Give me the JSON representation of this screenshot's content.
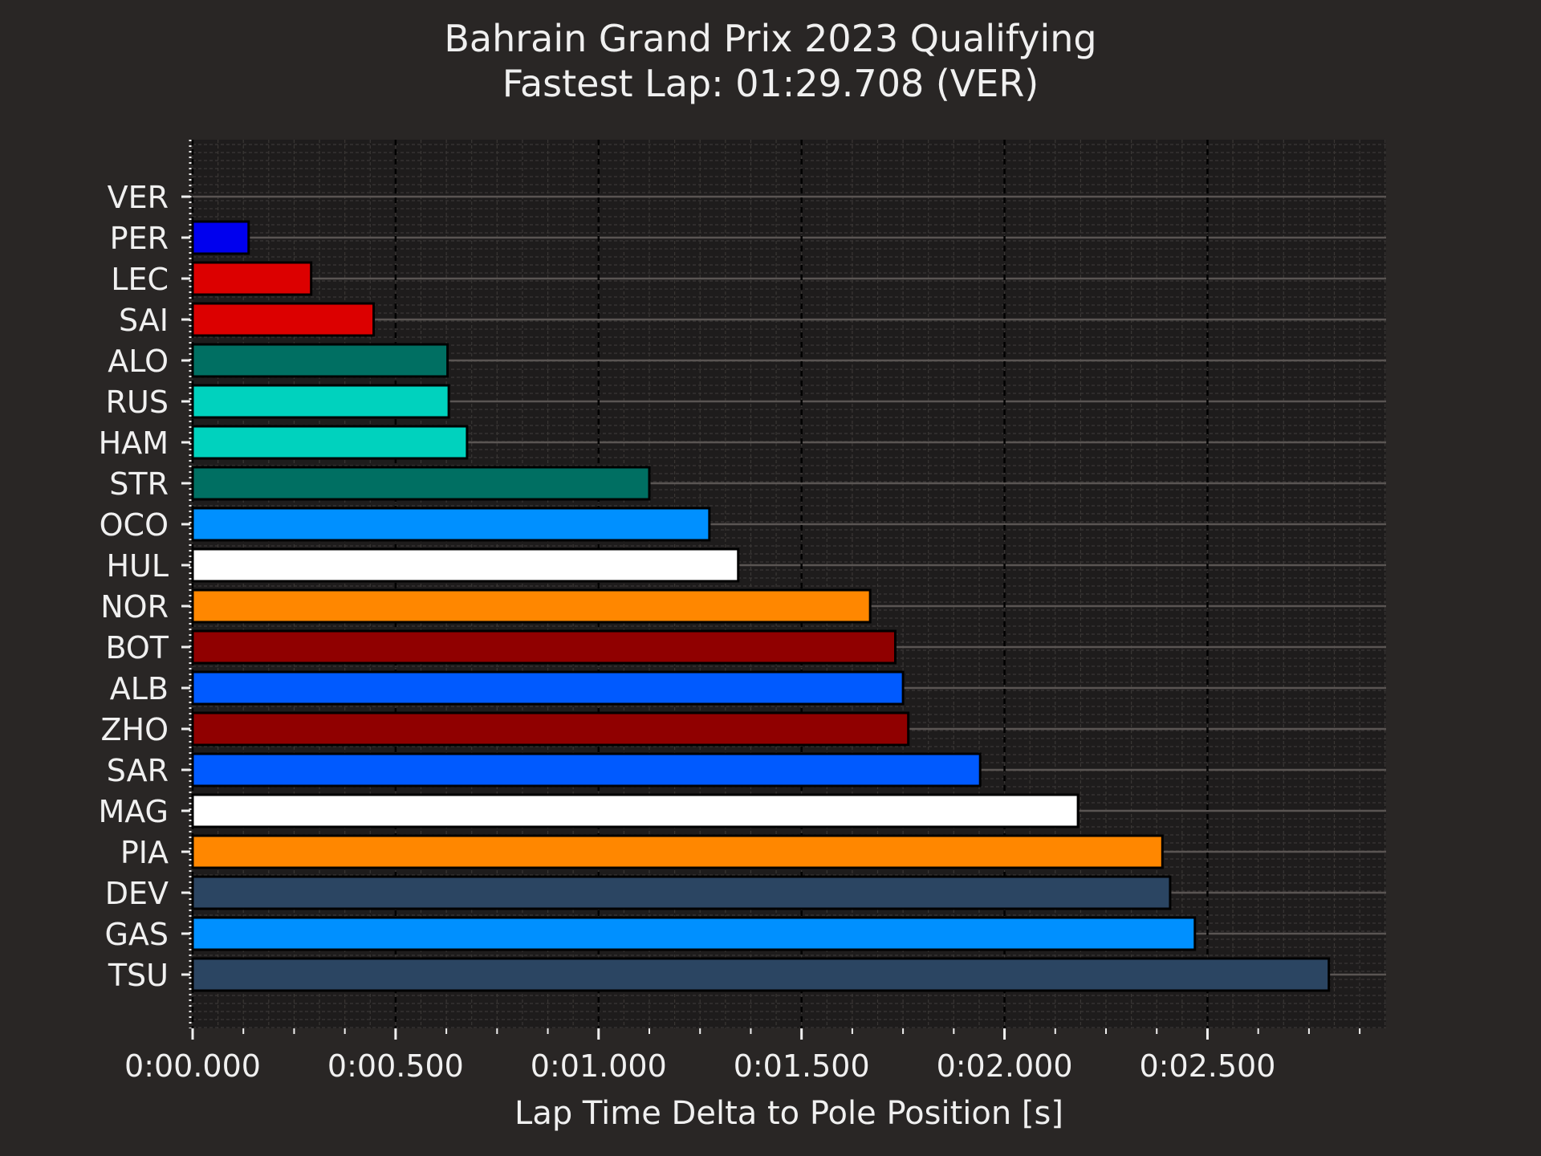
{
  "chart_data": {
    "type": "bar",
    "orientation": "horizontal",
    "title": "Bahrain Grand Prix 2023 Qualifying",
    "subtitle": "Fastest Lap: 01:29.708 (VER)",
    "xlabel": "Lap Time Delta to Pole Position [s]",
    "ylabel": "",
    "xlim": [
      0,
      2.94
    ],
    "xticks": [
      0,
      0.5,
      1.0,
      1.5,
      2.0,
      2.5
    ],
    "xtick_labels": [
      "0:00.000",
      "0:00.500",
      "0:01.000",
      "0:01.500",
      "0:02.000",
      "0:02.500"
    ],
    "grid": true,
    "categories": [
      "VER",
      "PER",
      "LEC",
      "SAI",
      "ALO",
      "RUS",
      "HAM",
      "STR",
      "OCO",
      "HUL",
      "NOR",
      "BOT",
      "ALB",
      "ZHO",
      "SAR",
      "MAG",
      "PIA",
      "DEV",
      "GAS",
      "TSU"
    ],
    "values": [
      0.0,
      0.138,
      0.292,
      0.446,
      0.628,
      0.631,
      0.676,
      1.125,
      1.273,
      1.344,
      1.669,
      1.731,
      1.75,
      1.763,
      1.94,
      2.181,
      2.389,
      2.408,
      2.469,
      2.799
    ],
    "colors": [
      "#3671C6",
      "#0000ee",
      "#dc0000",
      "#dc0000",
      "#006f62",
      "#00d2be",
      "#00d2be",
      "#006f62",
      "#0090ff",
      "#ffffff",
      "#ff8700",
      "#900000",
      "#005aff",
      "#900000",
      "#005aff",
      "#ffffff",
      "#ff8700",
      "#2b4562",
      "#0090ff",
      "#2b4562"
    ]
  }
}
